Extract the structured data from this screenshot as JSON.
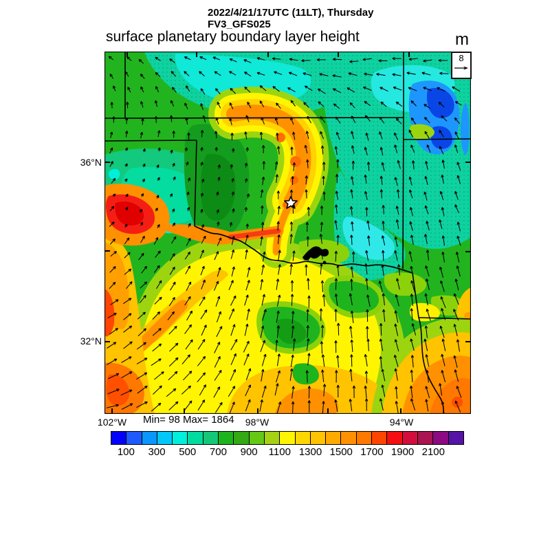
{
  "header": {
    "datetime": "2022/4/21/17UTC (11LT), Thursday",
    "model": "FV3_GFS025",
    "title": "surface planetary boundary layer height",
    "units": "m"
  },
  "stats_label": "Min= 98 Max= 1864",
  "wind_reference": {
    "value": "8"
  },
  "chart_data": {
    "type": "heatmap",
    "subtype": "filled contour map of planetary boundary layer height with wind vector overlay and state borders",
    "title": "surface planetary boundary layer height",
    "valid_time": "2022/4/21/17UTC (11LT), Thursday",
    "model": "FV3_GFS025",
    "units": "m",
    "field_min": 98,
    "field_max": 1864,
    "wind_reference_value": 8,
    "lat_tick_labels": [
      "36°N",
      "32°N"
    ],
    "lon_tick_labels": [
      "102°W",
      "98°W",
      "94°W"
    ],
    "colorbar": {
      "orientation": "horizontal",
      "levels": [
        0,
        100,
        200,
        300,
        400,
        500,
        600,
        700,
        800,
        900,
        1000,
        1100,
        1200,
        1300,
        1400,
        1500,
        1600,
        1700,
        1800,
        1900,
        2000,
        2100,
        2200,
        2300
      ],
      "tick_labels": [
        "100",
        "300",
        "500",
        "700",
        "900",
        "1100",
        "1300",
        "1500",
        "1700",
        "1900",
        "2100"
      ],
      "colors": [
        "#0202FA",
        "#1E5AFF",
        "#0A96FF",
        "#00C8FA",
        "#00EEDC",
        "#00DCA0",
        "#14C878",
        "#1EB41E",
        "#32AA14",
        "#64C814",
        "#A5D214",
        "#FFF500",
        "#FFD700",
        "#FFC300",
        "#FFAA00",
        "#FF9100",
        "#FF7800",
        "#FF4600",
        "#F50F14",
        "#D20F3C",
        "#AA1450",
        "#8C0A82",
        "#5514A5"
      ]
    },
    "annotations": {
      "station_marker": "white star in central Oklahoma",
      "water_body": "black lake shape on the Red River border"
    },
    "pattern_summary": [
      {
        "area": "northeast quadrant (eastern Kansas / Missouri)",
        "pbl_m": "200-700",
        "color": "cyan with blue minimum"
      },
      {
        "area": "north and west-central (Kansas, western Oklahoma)",
        "pbl_m": "600-900",
        "color": "green / teal"
      },
      {
        "area": "curved dryline bulge arc, central Oklahoma",
        "pbl_m": "1300-1700",
        "color": "orange core with gold ring"
      },
      {
        "area": "central-south (southern Oklahoma, north Texas)",
        "pbl_m": "1000-1200",
        "color": "yellow"
      },
      {
        "area": "far west edge (Texas panhandle)",
        "pbl_m": "1500-1900",
        "color": "red maxima"
      },
      {
        "area": "southeast corner",
        "pbl_m": "1300-1600",
        "color": "orange"
      }
    ]
  }
}
